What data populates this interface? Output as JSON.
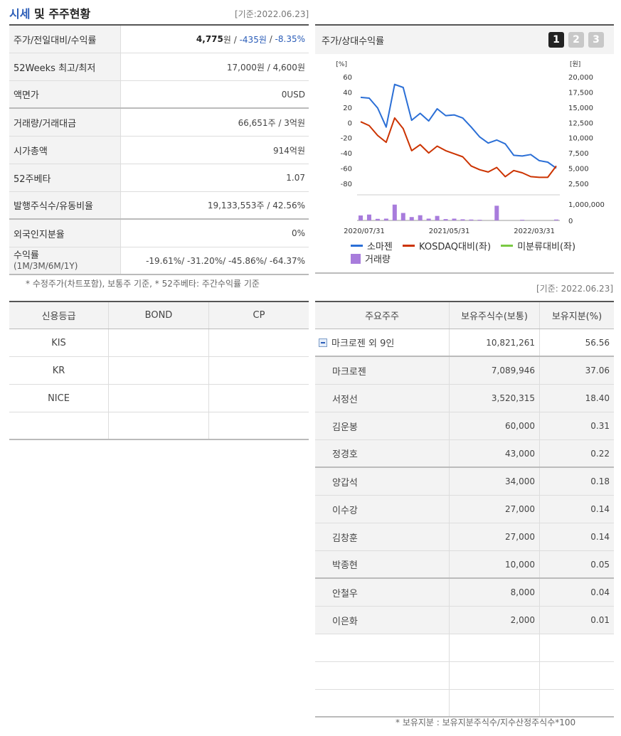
{
  "header": {
    "title_blue": "시세",
    "title_rest": " 및 주주현황",
    "date": "[기준:2022.06.23]"
  },
  "price_table": {
    "rows": [
      {
        "label": "주가/전일대비/수익률",
        "price": "4,775",
        "price_unit": "원 / ",
        "change": "-435원",
        "sep": " / ",
        "rate": "-8.35%"
      },
      {
        "label": "52Weeks 최고/최저",
        "value": "17,000원 / 4,600원"
      },
      {
        "label": "액면가",
        "value": "0USD"
      },
      {
        "label": "거래량/거래대금",
        "value": "66,651주 / 3억원"
      },
      {
        "label": "시가총액",
        "value": "914억원"
      },
      {
        "label": "52주베타",
        "value": "1.07"
      },
      {
        "label": "발행주식수/유동비율",
        "value": "19,133,553주 / 42.56%"
      },
      {
        "label": "외국인지분율",
        "value": "0%"
      },
      {
        "label": "수익률",
        "label_sub": "(1M/3M/6M/1Y)",
        "value": "-19.61%/ -31.20%/ -45.86%/ -64.37%"
      }
    ],
    "note": "* 수정주가(차트포함), 보통주 기준, * 52주베타: 주간수익률 기준"
  },
  "credit_table": {
    "headers": [
      "신용등급",
      "BOND",
      "CP"
    ],
    "rows": [
      [
        "KIS",
        "",
        ""
      ],
      [
        "KR",
        "",
        ""
      ],
      [
        "NICE",
        "",
        ""
      ],
      [
        "",
        "",
        ""
      ]
    ]
  },
  "chart_panel": {
    "title": "주가/상대수익률",
    "tabs": [
      "1",
      "2",
      "3"
    ],
    "active_tab": 0,
    "legend": {
      "series1": "소마젠",
      "series2": "KOSDAQ대비(좌)",
      "series3": "미분류대비(좌)",
      "volume": "거래량"
    },
    "colors": {
      "series1": "#2b6fd6",
      "series2": "#cc3300",
      "series3": "#7ac943",
      "volume": "#a87cdc"
    }
  },
  "chart_data": {
    "type": "line",
    "left_axis_unit": "[%]",
    "right_axis_unit": "[원]",
    "left_ticks": [
      "60",
      "40",
      "20",
      "0",
      "-20",
      "-40",
      "-60",
      "-80"
    ],
    "right_ticks": [
      "20,000",
      "17,500",
      "15,000",
      "12,500",
      "10,000",
      "7,500",
      "5,000",
      "2,500"
    ],
    "volume_ticks": [
      "1,000,000",
      "0"
    ],
    "x_ticks": [
      "2020/07/31",
      "2021/05/31",
      "2022/03/31"
    ],
    "ylim_left": [
      -80,
      60
    ],
    "series": [
      {
        "name": "소마젠",
        "values": [
          33,
          32,
          19,
          -6,
          50,
          46,
          3,
          12,
          2,
          18,
          9,
          10,
          6,
          -6,
          -19,
          -27,
          -23,
          -28,
          -43,
          -44,
          -42,
          -50,
          -52,
          -60
        ]
      },
      {
        "name": "KOSDAQ대비(좌)",
        "values": [
          1,
          -4,
          -17,
          -26,
          6,
          -8,
          -37,
          -29,
          -40,
          -31,
          -37,
          -41,
          -45,
          -57,
          -62,
          -65,
          -59,
          -71,
          -63,
          -66,
          -71,
          -72,
          -72,
          -57
        ]
      }
    ],
    "volume": [
      220000,
      260000,
      70000,
      80000,
      700000,
      330000,
      150000,
      230000,
      80000,
      200000,
      60000,
      80000,
      50000,
      40000,
      30000,
      0,
      650000,
      0,
      0,
      30000,
      0,
      0,
      0,
      40000
    ]
  },
  "share_section": {
    "date": "[기준: 2022.06.23]",
    "headers": [
      "주요주주",
      "보유주식수(보통)",
      "보유지분(%)"
    ],
    "main_row": {
      "name": "마크로젠 외 9인",
      "shares": "10,821,261",
      "ratio": "56.56"
    },
    "rows": [
      {
        "name": "마크로젠",
        "shares": "7,089,946",
        "ratio": "37.06"
      },
      {
        "name": "서정선",
        "shares": "3,520,315",
        "ratio": "18.40"
      },
      {
        "name": "김운봉",
        "shares": "60,000",
        "ratio": "0.31"
      },
      {
        "name": "정경호",
        "shares": "43,000",
        "ratio": "0.22"
      },
      {
        "name": "양갑석",
        "shares": "34,000",
        "ratio": "0.18"
      },
      {
        "name": "이수강",
        "shares": "27,000",
        "ratio": "0.14"
      },
      {
        "name": "김창훈",
        "shares": "27,000",
        "ratio": "0.14"
      },
      {
        "name": "박종현",
        "shares": "10,000",
        "ratio": "0.05"
      },
      {
        "name": "안철우",
        "shares": "8,000",
        "ratio": "0.04"
      },
      {
        "name": "이은화",
        "shares": "2,000",
        "ratio": "0.01"
      }
    ],
    "note": "* 보유지분 : 보유지분주식수/지수산정주식수*100"
  }
}
